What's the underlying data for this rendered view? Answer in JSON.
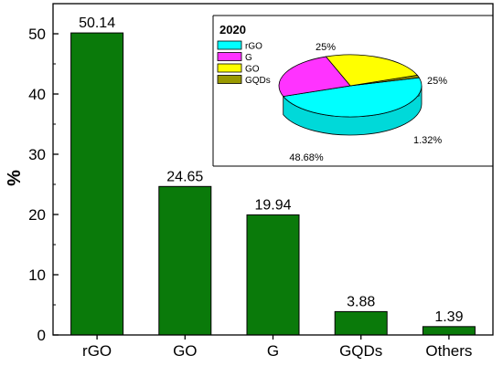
{
  "chart_data": [
    {
      "type": "bar",
      "ylabel": "%",
      "xlabel": "",
      "title": "",
      "ylim": [
        0,
        55
      ],
      "yticks": [
        0,
        10,
        20,
        30,
        40,
        50
      ],
      "grid": false,
      "categories": [
        "rGO",
        "GO",
        "G",
        "GQDs",
        "Others"
      ],
      "values": [
        50.14,
        24.65,
        19.94,
        3.88,
        1.39
      ],
      "value_labels": [
        "50.14",
        "24.65",
        "19.94",
        "3.88",
        "1.39"
      ],
      "bar_color": "#0a7a0a"
    },
    {
      "type": "pie",
      "title": "2020",
      "legend_position": "top-left",
      "slices": [
        {
          "name": "rGO",
          "value": 48.68,
          "label": "48.68%",
          "color": "#00ffff"
        },
        {
          "name": "G",
          "value": 25,
          "label": "25%",
          "color": "#ff33ff"
        },
        {
          "name": "GO",
          "value": 25,
          "label": "25%",
          "color": "#ffff00"
        },
        {
          "name": "GQDs",
          "value": 1.32,
          "label": "1.32%",
          "color": "#999900"
        }
      ]
    }
  ]
}
